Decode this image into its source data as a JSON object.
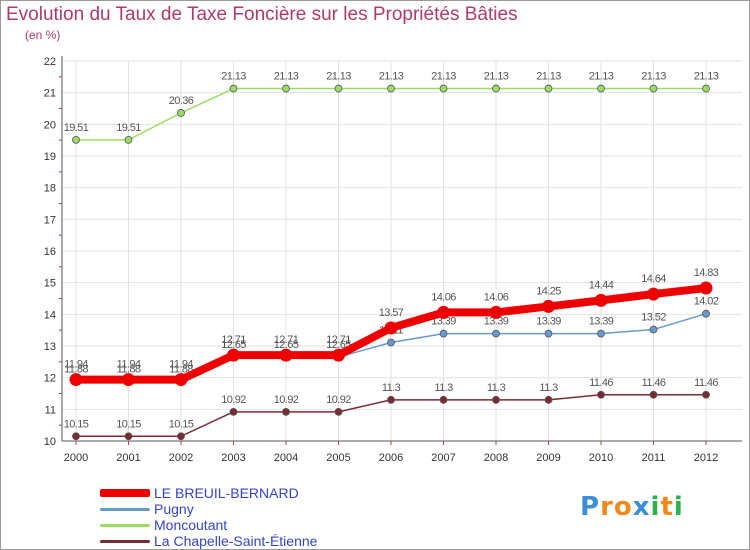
{
  "chart_data": {
    "type": "line",
    "title": "Evolution du Taux de Taxe Foncière sur les Propriétés Bâties",
    "ylabel": "(en %)",
    "xlabel": "",
    "categories": [
      "2000",
      "2001",
      "2002",
      "2003",
      "2004",
      "2005",
      "2006",
      "2007",
      "2008",
      "2009",
      "2010",
      "2011",
      "2012"
    ],
    "ylim": [
      10,
      22
    ],
    "yticks": [
      "10",
      "11",
      "12",
      "13",
      "14",
      "15",
      "16",
      "17",
      "18",
      "19",
      "20",
      "21",
      "22"
    ],
    "grid": true,
    "series": [
      {
        "name": "Moncoutant",
        "color": "#99dd66",
        "values": [
          19.51,
          19.51,
          20.36,
          21.13,
          21.13,
          21.13,
          21.13,
          21.13,
          21.13,
          21.13,
          21.13,
          21.13,
          21.13
        ],
        "labels": [
          "19.51",
          "19.51",
          "20.36",
          "21.13",
          "21.13",
          "21.13",
          "21.13",
          "21.13",
          "21.13",
          "21.13",
          "21.13",
          "21.13",
          "21.13"
        ]
      },
      {
        "name": "La Chapelle-Saint-Étienne",
        "color": "#7a2a32",
        "values": [
          10.15,
          10.15,
          10.15,
          10.92,
          10.92,
          10.92,
          11.3,
          11.3,
          11.3,
          11.3,
          11.46,
          11.46,
          11.46
        ],
        "labels": [
          "10.15",
          "10.15",
          "10.15",
          "10.92",
          "10.92",
          "10.92",
          "11.3",
          "11.3",
          "11.3",
          "11.3",
          "11.46",
          "11.46",
          "11.46"
        ]
      },
      {
        "name": "Pugny",
        "color": "#6699cc",
        "values": [
          11.88,
          11.88,
          11.88,
          12.65,
          12.65,
          12.65,
          13.11,
          13.39,
          13.39,
          13.39,
          13.39,
          13.52,
          14.02
        ],
        "labels": [
          "11.88",
          "11.88",
          "11.88",
          "12.65",
          "12.65",
          "12.65",
          "13.11",
          "13.39",
          "13.39",
          "13.39",
          "13.39",
          "13.52",
          "14.02"
        ]
      },
      {
        "name": "LE BREUIL-BERNARD",
        "color": "#ee0000",
        "values": [
          11.94,
          11.94,
          11.94,
          12.71,
          12.71,
          12.71,
          13.57,
          14.06,
          14.06,
          14.25,
          14.44,
          14.64,
          14.83
        ],
        "labels": [
          "11.94",
          "11.94",
          "11.94",
          "12.71",
          "12.71",
          "12.71",
          "13.57",
          "14.06",
          "14.06",
          "14.25",
          "14.44",
          "14.64",
          "14.83"
        ]
      }
    ]
  },
  "legend": [
    {
      "name": "LE BREUIL-BERNARD",
      "color": "#ee0000"
    },
    {
      "name": "Pugny",
      "color": "#6699cc"
    },
    {
      "name": "Moncoutant",
      "color": "#99dd66"
    },
    {
      "name": "La Chapelle-Saint-Étienne",
      "color": "#7a2a32"
    }
  ],
  "logo": {
    "letters": [
      "P",
      "r",
      "o",
      "x",
      "i",
      "t",
      "i"
    ],
    "colors": [
      "#3a8fd6",
      "#f08a1c",
      "#f08a1c",
      "#3a8fd6",
      "#2bb24c",
      "#f08a1c",
      "#2bb24c"
    ]
  }
}
